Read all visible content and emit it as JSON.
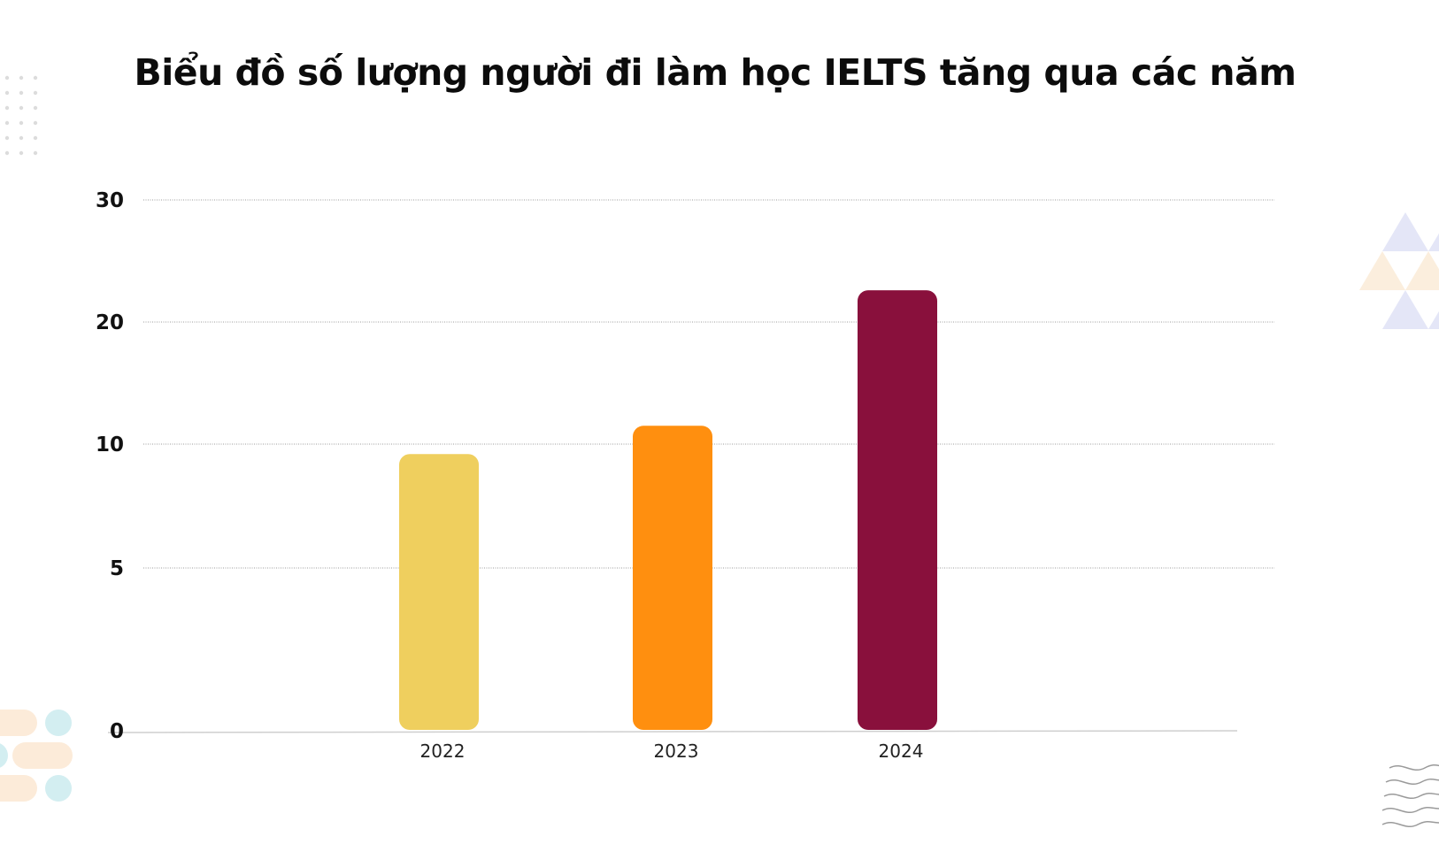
{
  "chart_data": {
    "type": "bar",
    "title": "Biểu đồ số lượng người đi làm học IELTS tăng qua các năm",
    "xlabel": "",
    "ylabel": "",
    "categories": [
      "2022",
      "2023",
      "2024"
    ],
    "values": [
      9.6,
      11.5,
      22.6
    ],
    "colors": [
      "#EFCF5E",
      "#FF8F0F",
      "#89103C"
    ],
    "yticks": [
      "0",
      "5",
      "10",
      "20",
      "30"
    ],
    "ylim": [
      0,
      30
    ],
    "grid": true,
    "legend": "none"
  },
  "decorations": {
    "dot_grid_color": "#dcdcdc",
    "triangle_colors": [
      "#e4e6f7",
      "#fbeedd"
    ],
    "pill_colors": [
      "#fcebd9",
      "#d3eef1"
    ],
    "wave_color": "#9a9a9a"
  }
}
